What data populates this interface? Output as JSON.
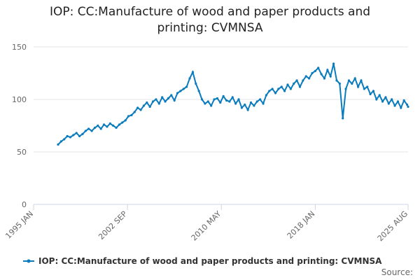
{
  "chart_data": {
    "type": "line",
    "title": "IOP: CC:Manufacture of wood and paper products and printing: CVMNSA",
    "source": "Source:",
    "x": [
      "1997 JAN",
      "1997 APR",
      "1997 JUL",
      "1997 OCT",
      "1998 JAN",
      "1998 APR",
      "1998 JUL",
      "1998 OCT",
      "1999 JAN",
      "1999 APR",
      "1999 JUL",
      "1999 OCT",
      "2000 JAN",
      "2000 APR",
      "2000 JUL",
      "2000 OCT",
      "2001 JAN",
      "2001 APR",
      "2001 JUL",
      "2001 OCT",
      "2002 JAN",
      "2002 APR",
      "2002 JUL",
      "2002 OCT",
      "2003 JAN",
      "2003 APR",
      "2003 JUL",
      "2003 OCT",
      "2004 JAN",
      "2004 APR",
      "2004 JUL",
      "2004 OCT",
      "2005 JAN",
      "2005 APR",
      "2005 JUL",
      "2005 OCT",
      "2006 JAN",
      "2006 APR",
      "2006 JUL",
      "2006 OCT",
      "2007 JAN",
      "2007 APR",
      "2007 JUL",
      "2007 OCT",
      "2008 JAN",
      "2008 APR",
      "2008 JUL",
      "2008 OCT",
      "2009 JAN",
      "2009 APR",
      "2009 JUL",
      "2009 OCT",
      "2010 JAN",
      "2010 APR",
      "2010 JUL",
      "2010 OCT",
      "2011 JAN",
      "2011 APR",
      "2011 JUL",
      "2011 OCT",
      "2012 JAN",
      "2012 APR",
      "2012 JUL",
      "2012 OCT",
      "2013 JAN",
      "2013 APR",
      "2013 JUL",
      "2013 OCT",
      "2014 JAN",
      "2014 APR",
      "2014 JUL",
      "2014 OCT",
      "2015 JAN",
      "2015 APR",
      "2015 JUL",
      "2015 OCT",
      "2016 JAN",
      "2016 APR",
      "2016 JUL",
      "2016 OCT",
      "2017 JAN",
      "2017 APR",
      "2017 JUL",
      "2017 OCT",
      "2018 JAN",
      "2018 APR",
      "2018 JUL",
      "2018 OCT",
      "2019 JAN",
      "2019 APR",
      "2019 JUL",
      "2019 OCT",
      "2020 JAN",
      "2020 APR",
      "2020 JUL",
      "2020 OCT",
      "2021 JAN",
      "2021 APR",
      "2021 JUL",
      "2021 OCT",
      "2022 JAN",
      "2022 APR",
      "2022 JUL",
      "2022 OCT",
      "2023 JAN",
      "2023 APR",
      "2023 JUL",
      "2023 OCT",
      "2024 JAN",
      "2024 APR",
      "2024 JUL",
      "2024 OCT",
      "2025 JAN",
      "2025 APR",
      "2025 JUL",
      "2025 AUG"
    ],
    "series": [
      {
        "name": "IOP: CC:Manufacture of wood and paper products and printing: CVMNSA",
        "color": "#0a7bbd",
        "values": [
          57,
          60,
          62,
          65,
          64,
          66,
          68,
          65,
          67,
          70,
          72,
          70,
          73,
          75,
          72,
          76,
          74,
          77,
          75,
          73,
          76,
          78,
          80,
          84,
          85,
          88,
          92,
          90,
          94,
          97,
          93,
          98,
          100,
          96,
          102,
          98,
          101,
          104,
          99,
          106,
          108,
          110,
          112,
          120,
          126,
          115,
          108,
          100,
          96,
          98,
          94,
          100,
          101,
          97,
          103,
          99,
          98,
          102,
          96,
          100,
          92,
          95,
          90,
          97,
          94,
          98,
          100,
          96,
          104,
          108,
          110,
          106,
          110,
          112,
          108,
          114,
          110,
          115,
          118,
          112,
          118,
          122,
          120,
          125,
          127,
          130,
          124,
          120,
          128,
          122,
          134,
          118,
          115,
          82,
          110,
          118,
          115,
          120,
          112,
          118,
          110,
          112,
          105,
          108,
          100,
          104,
          98,
          102,
          96,
          100,
          94,
          98,
          92,
          99,
          95,
          93
        ]
      }
    ],
    "xlim": [
      "1995 JAN",
      "2025 AUG"
    ],
    "xticks": [
      "1995 JAN",
      "2002 SEP",
      "2010 MAY",
      "2018 JAN",
      "2025 AUG"
    ],
    "ylim": [
      0,
      150
    ],
    "yticks": [
      0,
      50,
      100,
      150
    ],
    "grid": true
  }
}
